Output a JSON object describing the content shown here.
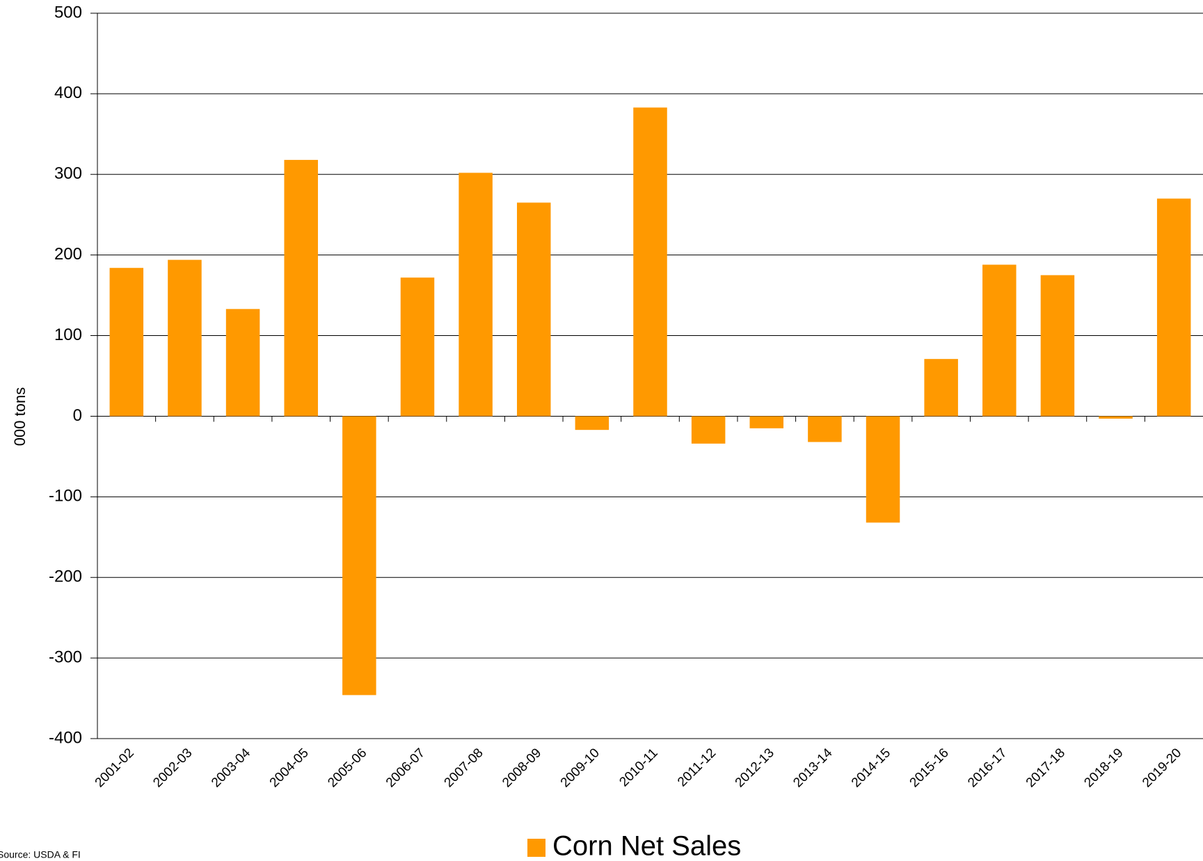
{
  "chart_data": {
    "type": "bar",
    "y_axis_label": "000 tons",
    "source": "Source: USDA & FI",
    "categories": [
      "2001-02",
      "2002-03",
      "2003-04",
      "2004-05",
      "2005-06",
      "2006-07",
      "2007-08",
      "2008-09",
      "2009-10",
      "2010-11",
      "2011-12",
      "2012-13",
      "2013-14",
      "2014-15",
      "2015-16",
      "2016-17",
      "2017-18",
      "2018-19",
      "2019-20"
    ],
    "series": [
      {
        "name": "Corn Net Sales",
        "color": "#ff9900",
        "values": [
          184,
          194,
          133,
          318,
          -346,
          172,
          302,
          265,
          -17,
          383,
          -34,
          -15,
          -32,
          -132,
          71,
          188,
          175,
          -3,
          270
        ]
      }
    ],
    "ylim": [
      -400,
      500
    ],
    "yticks": [
      -400,
      -300,
      -200,
      -100,
      0,
      100,
      200,
      300,
      400,
      500
    ],
    "grid": true
  }
}
